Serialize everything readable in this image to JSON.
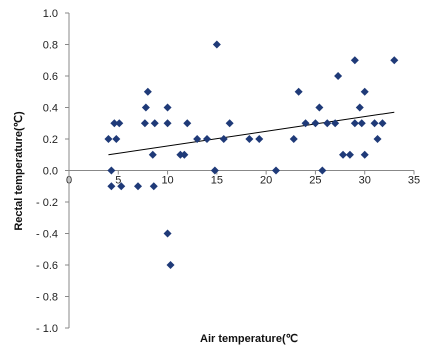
{
  "chart_data": {
    "type": "scatter",
    "title": "",
    "xlabel": "Air temperature(℃",
    "ylabel": "Rectal temperature(℃)",
    "xlim": [
      0,
      35
    ],
    "ylim": [
      -1.0,
      1.0
    ],
    "x_ticks": [
      "0",
      "5",
      "10",
      "15",
      "20",
      "25",
      "30",
      "35"
    ],
    "y_ticks": [
      "1.0",
      "0.8",
      "0.6",
      "0.4",
      "0.2",
      "0.0",
      "- 0.2",
      "- 0.4",
      "- 0.6",
      "- 0.8",
      "- 1.0"
    ],
    "grid": false,
    "legend": "none",
    "marker": "diamond",
    "marker_color": "#1f3a78",
    "trendline": {
      "type": "linear",
      "from": [
        4,
        0.1
      ],
      "to": [
        33,
        0.37
      ],
      "color": "#000000"
    },
    "points": [
      [
        4,
        0.2
      ],
      [
        4.3,
        0.0
      ],
      [
        4.3,
        -0.1
      ],
      [
        4.6,
        0.3
      ],
      [
        4.8,
        0.2
      ],
      [
        5.1,
        0.3
      ],
      [
        5.3,
        -0.1
      ],
      [
        7,
        -0.1
      ],
      [
        7.7,
        0.3
      ],
      [
        7.8,
        0.4
      ],
      [
        8,
        0.5
      ],
      [
        8.5,
        0.1
      ],
      [
        8.6,
        -0.1
      ],
      [
        8.7,
        0.3
      ],
      [
        10,
        0.3
      ],
      [
        10,
        0.4
      ],
      [
        10,
        -0.4
      ],
      [
        10.3,
        -0.6
      ],
      [
        11.3,
        0.1
      ],
      [
        11.7,
        0.1
      ],
      [
        12,
        0.3
      ],
      [
        13,
        0.2
      ],
      [
        14,
        0.2
      ],
      [
        14.8,
        0.0
      ],
      [
        15,
        0.8
      ],
      [
        15.7,
        0.2
      ],
      [
        16.3,
        0.3
      ],
      [
        18.3,
        0.2
      ],
      [
        19.3,
        0.2
      ],
      [
        21,
        0.0
      ],
      [
        22.8,
        0.2
      ],
      [
        23.3,
        0.5
      ],
      [
        24,
        0.3
      ],
      [
        25,
        0.3
      ],
      [
        25.4,
        0.4
      ],
      [
        25.7,
        0.0
      ],
      [
        26.2,
        0.3
      ],
      [
        27,
        0.3
      ],
      [
        27.3,
        0.6
      ],
      [
        27.8,
        0.1
      ],
      [
        28.5,
        0.1
      ],
      [
        29,
        0.3
      ],
      [
        29,
        0.7
      ],
      [
        29.5,
        0.4
      ],
      [
        29.7,
        0.3
      ],
      [
        30,
        0.5
      ],
      [
        30,
        0.1
      ],
      [
        31,
        0.3
      ],
      [
        31.3,
        0.2
      ],
      [
        31.8,
        0.3
      ],
      [
        33,
        0.7
      ]
    ]
  }
}
